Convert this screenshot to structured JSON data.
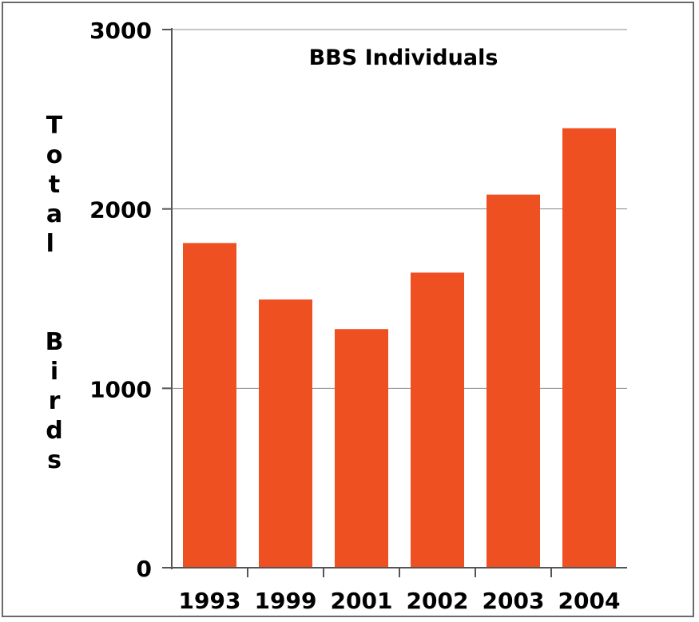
{
  "chart_data": {
    "type": "bar",
    "title": "BBS Individuals",
    "xlabel": "",
    "ylabel": "Total Birds",
    "categories": [
      "1993",
      "1999",
      "2001",
      "2002",
      "2003",
      "2004"
    ],
    "values": [
      1810,
      1495,
      1330,
      1645,
      2080,
      2450
    ],
    "ylim": [
      0,
      3000
    ],
    "yticks": [
      "0",
      "1000",
      "2000",
      "3000"
    ],
    "grid": true,
    "bar_color": "#EE5022",
    "grid_color": "#8a8a8a"
  }
}
